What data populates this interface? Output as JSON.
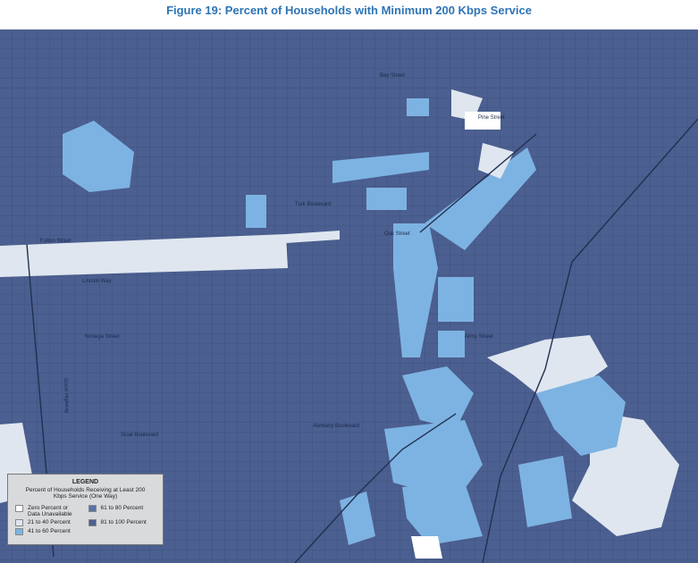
{
  "title": "Figure 19: Percent of Households with Minimum 200 Kbps Service",
  "legend": {
    "title": "LEGEND",
    "subtitle": "Percent of Households Receiving at Least 200 Kbps Service (One Way)",
    "items": [
      {
        "label": "Zero Percent or Data Unavailable",
        "color": "#ffffff"
      },
      {
        "label": "21 to 40 Percent",
        "color": "#dfe6ef"
      },
      {
        "label": "41 to 60 Percent",
        "color": "#7db3e2"
      },
      {
        "label": "61 to 80 Percent",
        "color": "#5a73a6"
      },
      {
        "label": "81 to 100 Percent",
        "color": "#4b5f90"
      }
    ]
  },
  "streets": [
    "Lincoln Way",
    "Turk Boulevard",
    "Oak Street",
    "Fulton Street",
    "Noriega Street",
    "Sloat Boulevard",
    "Alemany Boulevard",
    "Great Highway",
    "Bay Street",
    "Pine Street",
    "Army Street"
  ]
}
